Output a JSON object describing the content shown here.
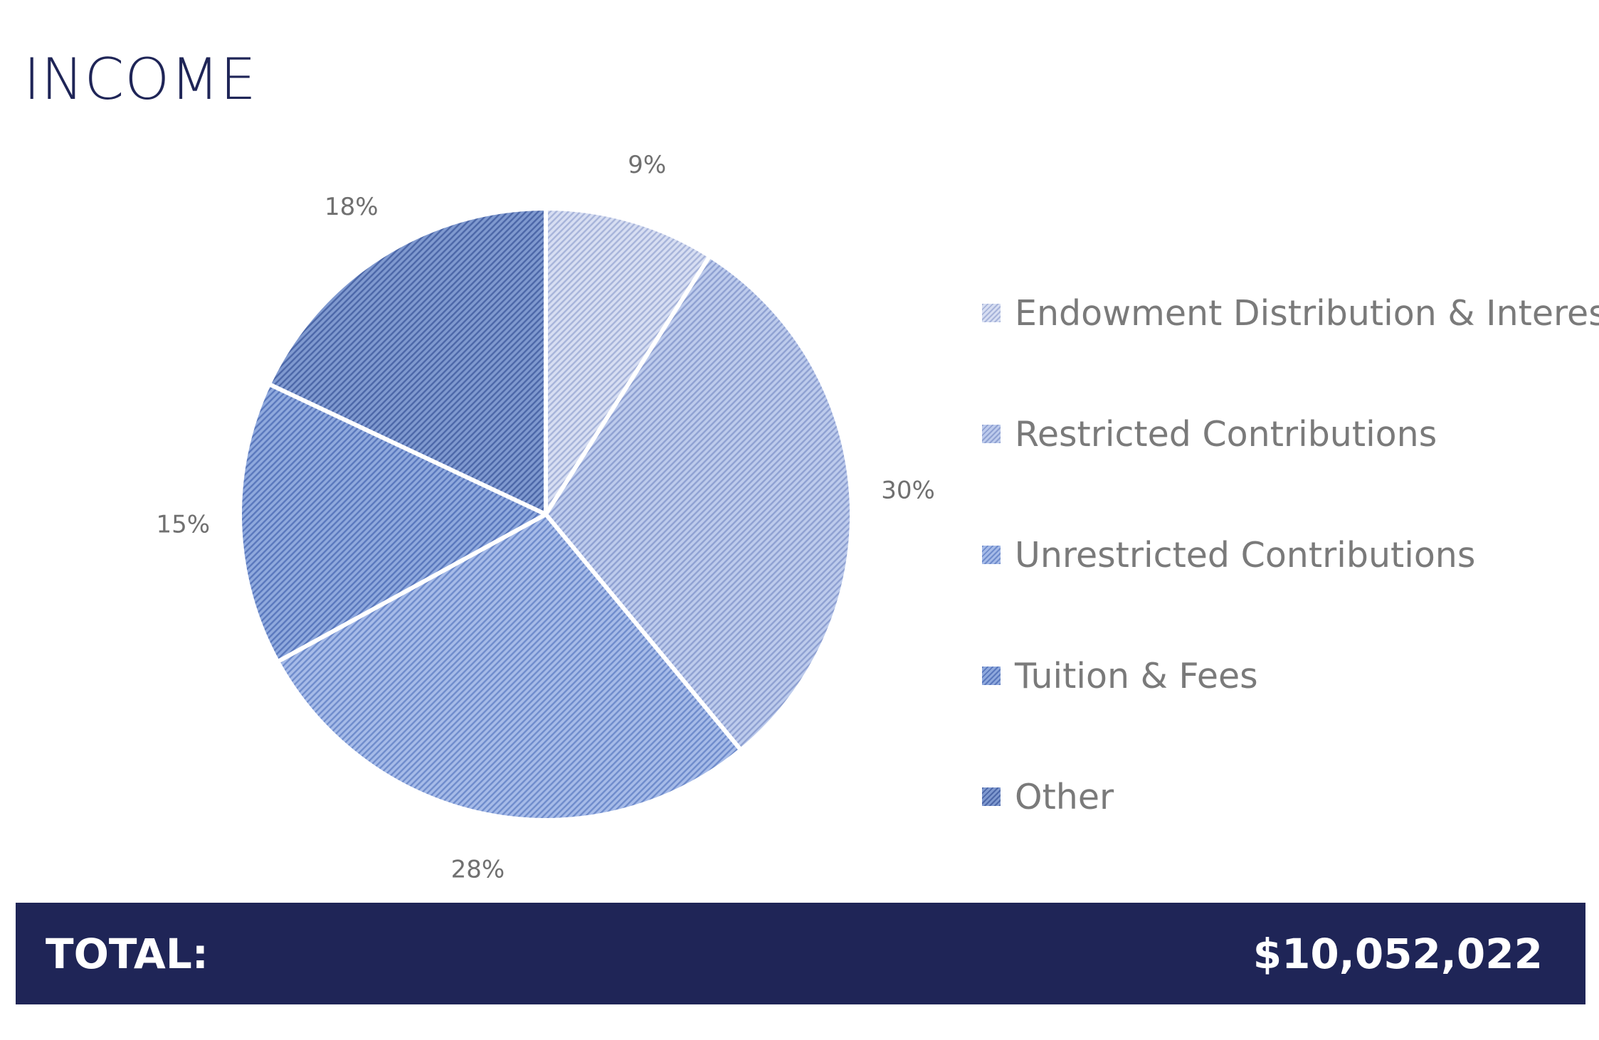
{
  "page": {
    "title": "INCOME"
  },
  "chart_data": {
    "type": "pie",
    "categories": [
      "Endowment Distribution & Interest",
      "Restricted Contributions",
      "Unrestricted Contributions",
      "Tuition & Fees",
      "Other"
    ],
    "values": [
      9,
      30,
      28,
      15,
      18
    ],
    "value_labels": [
      "9%",
      "30%",
      "28%",
      "15%",
      "18%"
    ],
    "colors": [
      "#d7def2",
      "#bdcbec",
      "#a6bbe8",
      "#8fa9dd",
      "#7f99cf"
    ],
    "stripe_colors": [
      "#a7b4da",
      "#8fa1d2",
      "#6f8ccc",
      "#5a78bd",
      "#4c67a8"
    ],
    "start_angle_deg": 0,
    "direction": "clockwise",
    "legend_position": "right"
  },
  "total": {
    "label": "TOTAL:",
    "value": "$10,052,022"
  }
}
